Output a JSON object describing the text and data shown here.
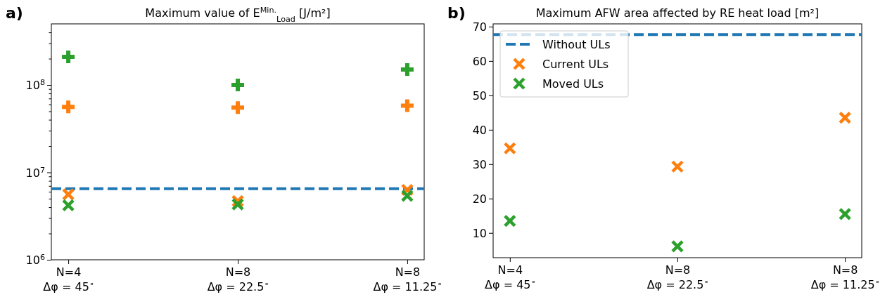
{
  "chart_data": [
    {
      "type": "scatter",
      "title": "Maximum value of E$^{Min.}$$_{Load}$ [J/m²]",
      "annotations": [
        "a)"
      ],
      "categories": [
        "N=4\nΔφ = 45$^{∘}$",
        "N=8\nΔφ = 22.5$^{∘}$",
        "N=8\nΔφ = 11.25$^{∘}$"
      ],
      "log": "y",
      "ylim": [
        1000000,
        500000000
      ],
      "yticks": [
        {
          "value": 1000000,
          "label": "10$^{6}$"
        },
        {
          "value": 2000000,
          "label": null
        },
        {
          "value": 3000000,
          "label": null
        },
        {
          "value": 4000000,
          "label": null
        },
        {
          "value": 5000000,
          "label": null
        },
        {
          "value": 6000000,
          "label": null
        },
        {
          "value": 7000000,
          "label": null
        },
        {
          "value": 8000000,
          "label": null
        },
        {
          "value": 9000000,
          "label": null
        },
        {
          "value": 10000000,
          "label": "10$^{7}$"
        },
        {
          "value": 20000000,
          "label": null
        },
        {
          "value": 30000000,
          "label": null
        },
        {
          "value": 40000000,
          "label": null
        },
        {
          "value": 50000000,
          "label": null
        },
        {
          "value": 60000000,
          "label": null
        },
        {
          "value": 70000000,
          "label": null
        },
        {
          "value": 80000000,
          "label": null
        },
        {
          "value": 90000000,
          "label": null
        },
        {
          "value": 100000000,
          "label": "10$^{8}$"
        },
        {
          "value": 200000000,
          "label": null
        },
        {
          "value": 300000000,
          "label": null
        },
        {
          "value": 400000000,
          "label": null
        }
      ],
      "ref_lines": [
        {
          "axis": "y",
          "value": 6500000,
          "color": "#1f77b4",
          "line_style": "dashed"
        }
      ],
      "series": [
        {
          "color": "#2ca02c",
          "marker": "cross",
          "values": [
            210000000,
            100000000,
            150000000
          ]
        },
        {
          "color": "#ff7f0e",
          "marker": "cross",
          "values": [
            56000000,
            55000000,
            58000000
          ]
        },
        {
          "color": "#ff7f0e",
          "marker": "x",
          "values": [
            5600000,
            4700000,
            6300000
          ]
        },
        {
          "color": "#2ca02c",
          "marker": "x",
          "values": [
            4200000,
            4300000,
            5400000
          ]
        }
      ]
    },
    {
      "type": "scatter",
      "title": "Maximum AFW area affected by RE heat load [m²]",
      "annotations": [
        "b)"
      ],
      "categories": [
        "N=4\nΔφ = 45$^{∘}$",
        "N=8\nΔφ = 22.5$^{∘}$",
        "N=8\nΔφ = 11.25$^{∘}$"
      ],
      "ylim": [
        2.8,
        70.8
      ],
      "yticks": [
        10,
        20,
        30,
        40,
        50,
        60,
        70
      ],
      "legend": "top left",
      "ref_lines": [
        {
          "axis": "y",
          "value": 67.7,
          "label": "Without ULs",
          "color": "#1f77b4",
          "line_style": "dashed"
        }
      ],
      "series": [
        {
          "name": "Current ULs",
          "color": "#ff7f0e",
          "marker": "x",
          "values": [
            34.6,
            29.3,
            43.5
          ]
        },
        {
          "name": "Moved ULs",
          "color": "#2ca02c",
          "marker": "x",
          "values": [
            13.5,
            6.1,
            15.5
          ]
        }
      ]
    }
  ]
}
